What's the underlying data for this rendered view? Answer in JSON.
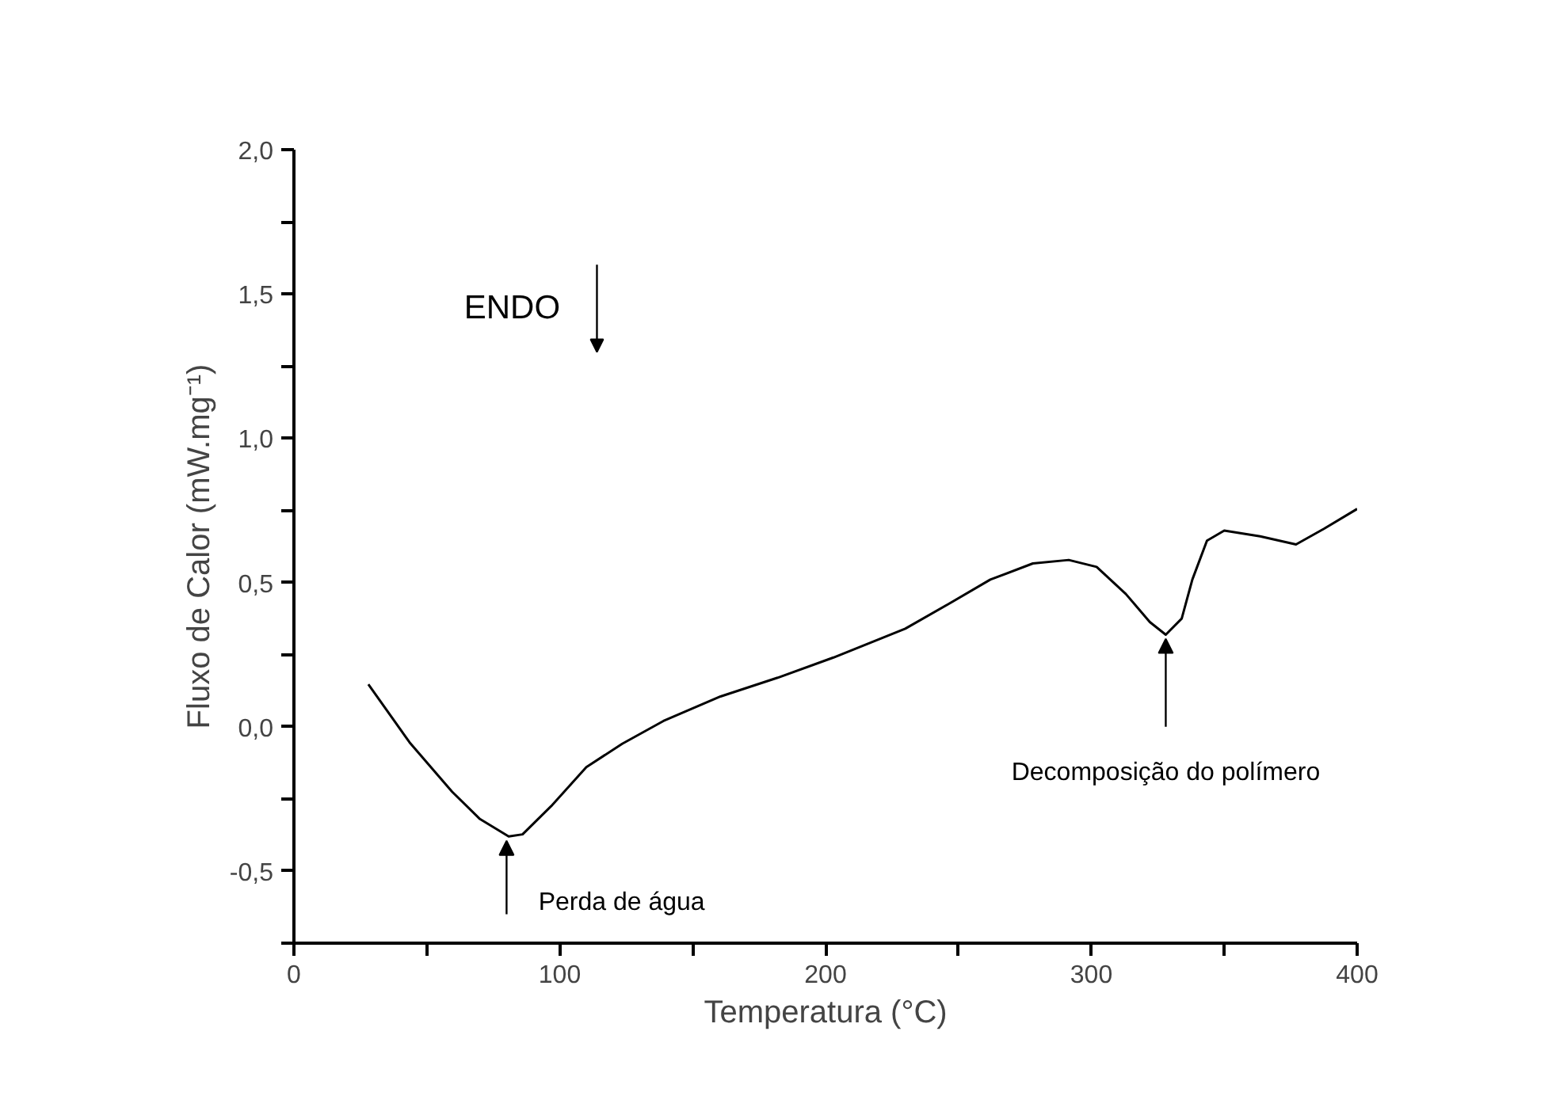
{
  "chart_data": {
    "type": "line",
    "xlabel": "Temperatura (°C)",
    "ylabel": "Fluxo de Calor (mW.mg⁻¹)",
    "x": [
      28,
      43.5,
      59.5,
      70,
      80.8,
      86,
      96.8,
      110,
      123.5,
      139,
      160.5,
      182,
      203,
      230,
      246,
      262,
      278,
      291.5,
      302,
      313,
      322,
      328,
      334,
      338,
      343.5,
      350,
      363.5,
      377,
      387.5,
      400
    ],
    "series": [
      {
        "color": "#000000",
        "values": [
          0.147,
          -0.054,
          -0.225,
          -0.32,
          -0.38,
          -0.373,
          -0.275,
          -0.14,
          -0.059,
          0.02,
          0.105,
          0.17,
          0.24,
          0.34,
          0.424,
          0.51,
          0.566,
          0.578,
          0.554,
          0.46,
          0.363,
          0.319,
          0.375,
          0.51,
          0.645,
          0.68,
          0.66,
          0.632,
          0.686,
          0.755
        ]
      }
    ],
    "xlim": [
      0,
      400
    ],
    "ylim": [
      -0.75,
      2.0
    ],
    "xticks": [
      0,
      {
        "value": 50,
        "label": null
      },
      100,
      {
        "value": 150,
        "label": null
      },
      200,
      {
        "value": 250,
        "label": null
      },
      300,
      {
        "value": 350,
        "label": null
      },
      400
    ],
    "yticks": [
      {
        "value": -0.75,
        "label": null
      },
      {
        "value": -0.5,
        "label": "-0,5"
      },
      {
        "value": -0.25,
        "label": null
      },
      {
        "value": 0.0,
        "label": "0,0"
      },
      {
        "value": 0.25,
        "label": null
      },
      {
        "value": 0.5,
        "label": "0,5"
      },
      {
        "value": 0.75,
        "label": null
      },
      {
        "value": 1.0,
        "label": "1,0"
      },
      {
        "value": 1.25,
        "label": null
      },
      {
        "value": 1.5,
        "label": "1,5"
      },
      {
        "value": 1.75,
        "label": null
      },
      {
        "value": 2.0,
        "label": "2,0"
      }
    ],
    "annotations": [
      "ENDO",
      {
        "text": "Perda de água",
        "x": 80,
        "y": -0.38
      },
      {
        "text": "Decomposição do polímero",
        "x": 328,
        "y": 0.32
      }
    ],
    "grid": false,
    "marker": "none",
    "line_style": "solid"
  }
}
